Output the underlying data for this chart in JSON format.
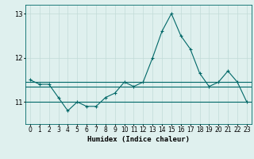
{
  "x": [
    0,
    1,
    2,
    3,
    4,
    5,
    6,
    7,
    8,
    9,
    10,
    11,
    12,
    13,
    14,
    15,
    16,
    17,
    18,
    19,
    20,
    21,
    22,
    23
  ],
  "y_main": [
    11.5,
    11.4,
    11.4,
    11.1,
    10.8,
    11.0,
    10.9,
    10.9,
    11.1,
    11.2,
    11.45,
    11.35,
    11.45,
    12.0,
    12.6,
    13.0,
    12.5,
    12.2,
    11.65,
    11.35,
    11.45,
    11.7,
    11.45,
    11.0
  ],
  "y_min_line": 11.0,
  "y_max_line": 11.45,
  "y_mean_line": 11.35,
  "ylim": [
    10.5,
    13.2
  ],
  "yticks": [
    11,
    12,
    13
  ],
  "xlim": [
    -0.5,
    23.5
  ],
  "bg_color": "#dff0ee",
  "grid_color": "#c2dbd8",
  "line_color": "#006868",
  "xlabel": "Humidex (Indice chaleur)",
  "xlabel_fontsize": 6.5,
  "tick_fontsize": 5.5
}
